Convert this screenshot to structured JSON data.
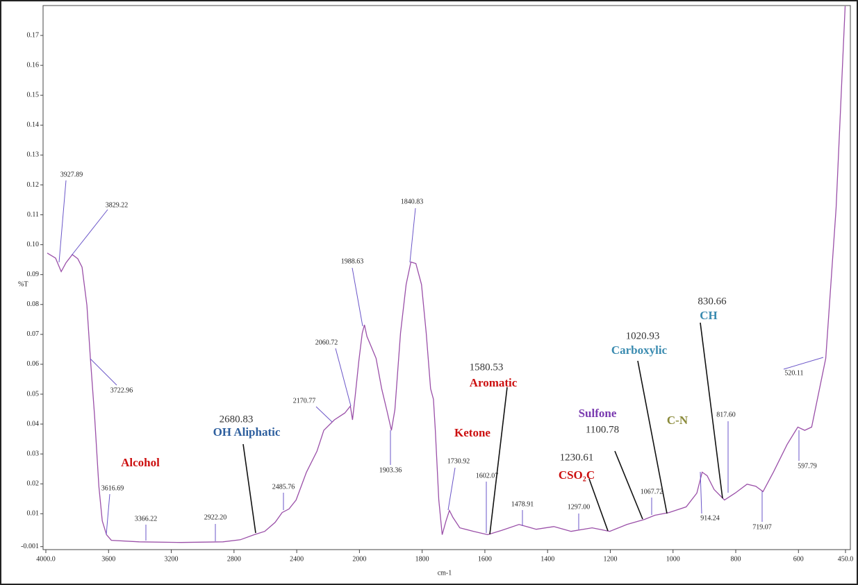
{
  "chart_data": {
    "type": "line",
    "xlabel": "cm-1",
    "ylabel": "%T",
    "x": [
      3991,
      3938,
      3902,
      3871,
      3831,
      3796,
      3769,
      3738,
      3716,
      3689,
      3662,
      3640,
      3613,
      3582,
      3404,
      3138,
      2871,
      2760,
      2671,
      2604,
      2538,
      2493,
      2449,
      2404,
      2338,
      2271,
      2227,
      2160,
      2093,
      2058,
      2044,
      2027,
      2004,
      1991,
      1984,
      1976,
      1962,
      1947,
      1929,
      1913,
      1898,
      1887,
      1869,
      1851,
      1836,
      1820,
      1802,
      1787,
      1773,
      1764,
      1758,
      1747,
      1736,
      1724,
      1713,
      1702,
      1680,
      1636,
      1591,
      1547,
      1491,
      1436,
      1380,
      1325,
      1258,
      1202,
      1147,
      1091,
      1058,
      1013,
      958,
      924,
      907,
      891,
      869,
      836,
      802,
      764,
      736,
      713,
      680,
      636,
      602,
      580,
      558,
      513,
      480,
      451
    ],
    "values": [
      0.0972,
      0.0955,
      0.091,
      0.094,
      0.0967,
      0.0953,
      0.0925,
      0.0797,
      0.062,
      0.0425,
      0.0192,
      0.0076,
      0.003,
      0.0011,
      0.0006,
      0.0004,
      0.0006,
      0.0013,
      0.003,
      0.0041,
      0.0071,
      0.0104,
      0.0116,
      0.0146,
      0.0239,
      0.0309,
      0.0379,
      0.0414,
      0.0437,
      0.046,
      0.0414,
      0.0495,
      0.0611,
      0.0704,
      0.0732,
      0.0693,
      0.0658,
      0.062,
      0.0518,
      0.0448,
      0.0379,
      0.0448,
      0.0704,
      0.0867,
      0.0942,
      0.0937,
      0.0867,
      0.0704,
      0.0518,
      0.0483,
      0.0379,
      0.0146,
      0.003,
      0.0076,
      0.0111,
      0.0088,
      0.0053,
      0.0041,
      0.003,
      0.0044,
      0.0064,
      0.0048,
      0.0057,
      0.0041,
      0.0053,
      0.0041,
      0.0064,
      0.0081,
      0.0095,
      0.0104,
      0.0123,
      0.0169,
      0.0239,
      0.0227,
      0.0181,
      0.0146,
      0.0169,
      0.0199,
      0.0192,
      0.0174,
      0.0239,
      0.0332,
      0.039,
      0.0379,
      0.039,
      0.062,
      0.1123,
      0.1798
    ],
    "color": "#9a4fa8",
    "xlim": [
      4000,
      450
    ],
    "x_scale_break": {
      "at": 2000,
      "factor": 2
    },
    "xticks": [
      {
        "value": 4000,
        "label": "4000.0"
      },
      3600,
      3200,
      2800,
      2400,
      2000,
      1800,
      1600,
      1400,
      1200,
      1000,
      800,
      600,
      {
        "value": 450,
        "label": "450.0"
      }
    ],
    "ylim": [
      -0.002,
      0.18
    ],
    "yticks": [
      -0.001,
      0.01,
      0.02,
      0.03,
      0.04,
      0.05,
      0.06,
      0.07,
      0.08,
      0.09,
      {
        "value": 0.1,
        "label": "0.10"
      },
      0.11,
      0.12,
      0.13,
      0.14,
      0.15,
      0.16,
      0.17
    ],
    "peak_labels": [
      "3927.89",
      "3829.22",
      "3722.96",
      "3616.69",
      "3366.22",
      "2922.20",
      "2485.76",
      "2170.77",
      "2060.72",
      "1988.63",
      "1840.83",
      "1903.36",
      "1730.92",
      "1602.07",
      "1478.91",
      "1297.00",
      "1067.72",
      "914.24",
      "817.60",
      "719.07",
      "597.79",
      "520.11"
    ],
    "band_labels": [
      "2680.83",
      "1580.53",
      "1230.61",
      "1100.78",
      "1020.93",
      "830.66"
    ],
    "group_labels": [
      {
        "text": "Alcohol",
        "color": "#cc1010"
      },
      {
        "text": "OH Aliphatic",
        "color": "#2e5f9e"
      },
      {
        "text": "Ketone",
        "color": "#cc1010"
      },
      {
        "text": "Aromatic",
        "color": "#cc1010"
      },
      {
        "text": "CSO₂C",
        "color": "#cc1010"
      },
      {
        "text": "Sulfone",
        "color": "#7a3bb0"
      },
      {
        "text": "Carboxylic",
        "color": "#3a8bb0"
      },
      {
        "text": "C-N",
        "color": "#8a8a3a"
      },
      {
        "text": "CH",
        "color": "#3a8bb0"
      }
    ]
  }
}
